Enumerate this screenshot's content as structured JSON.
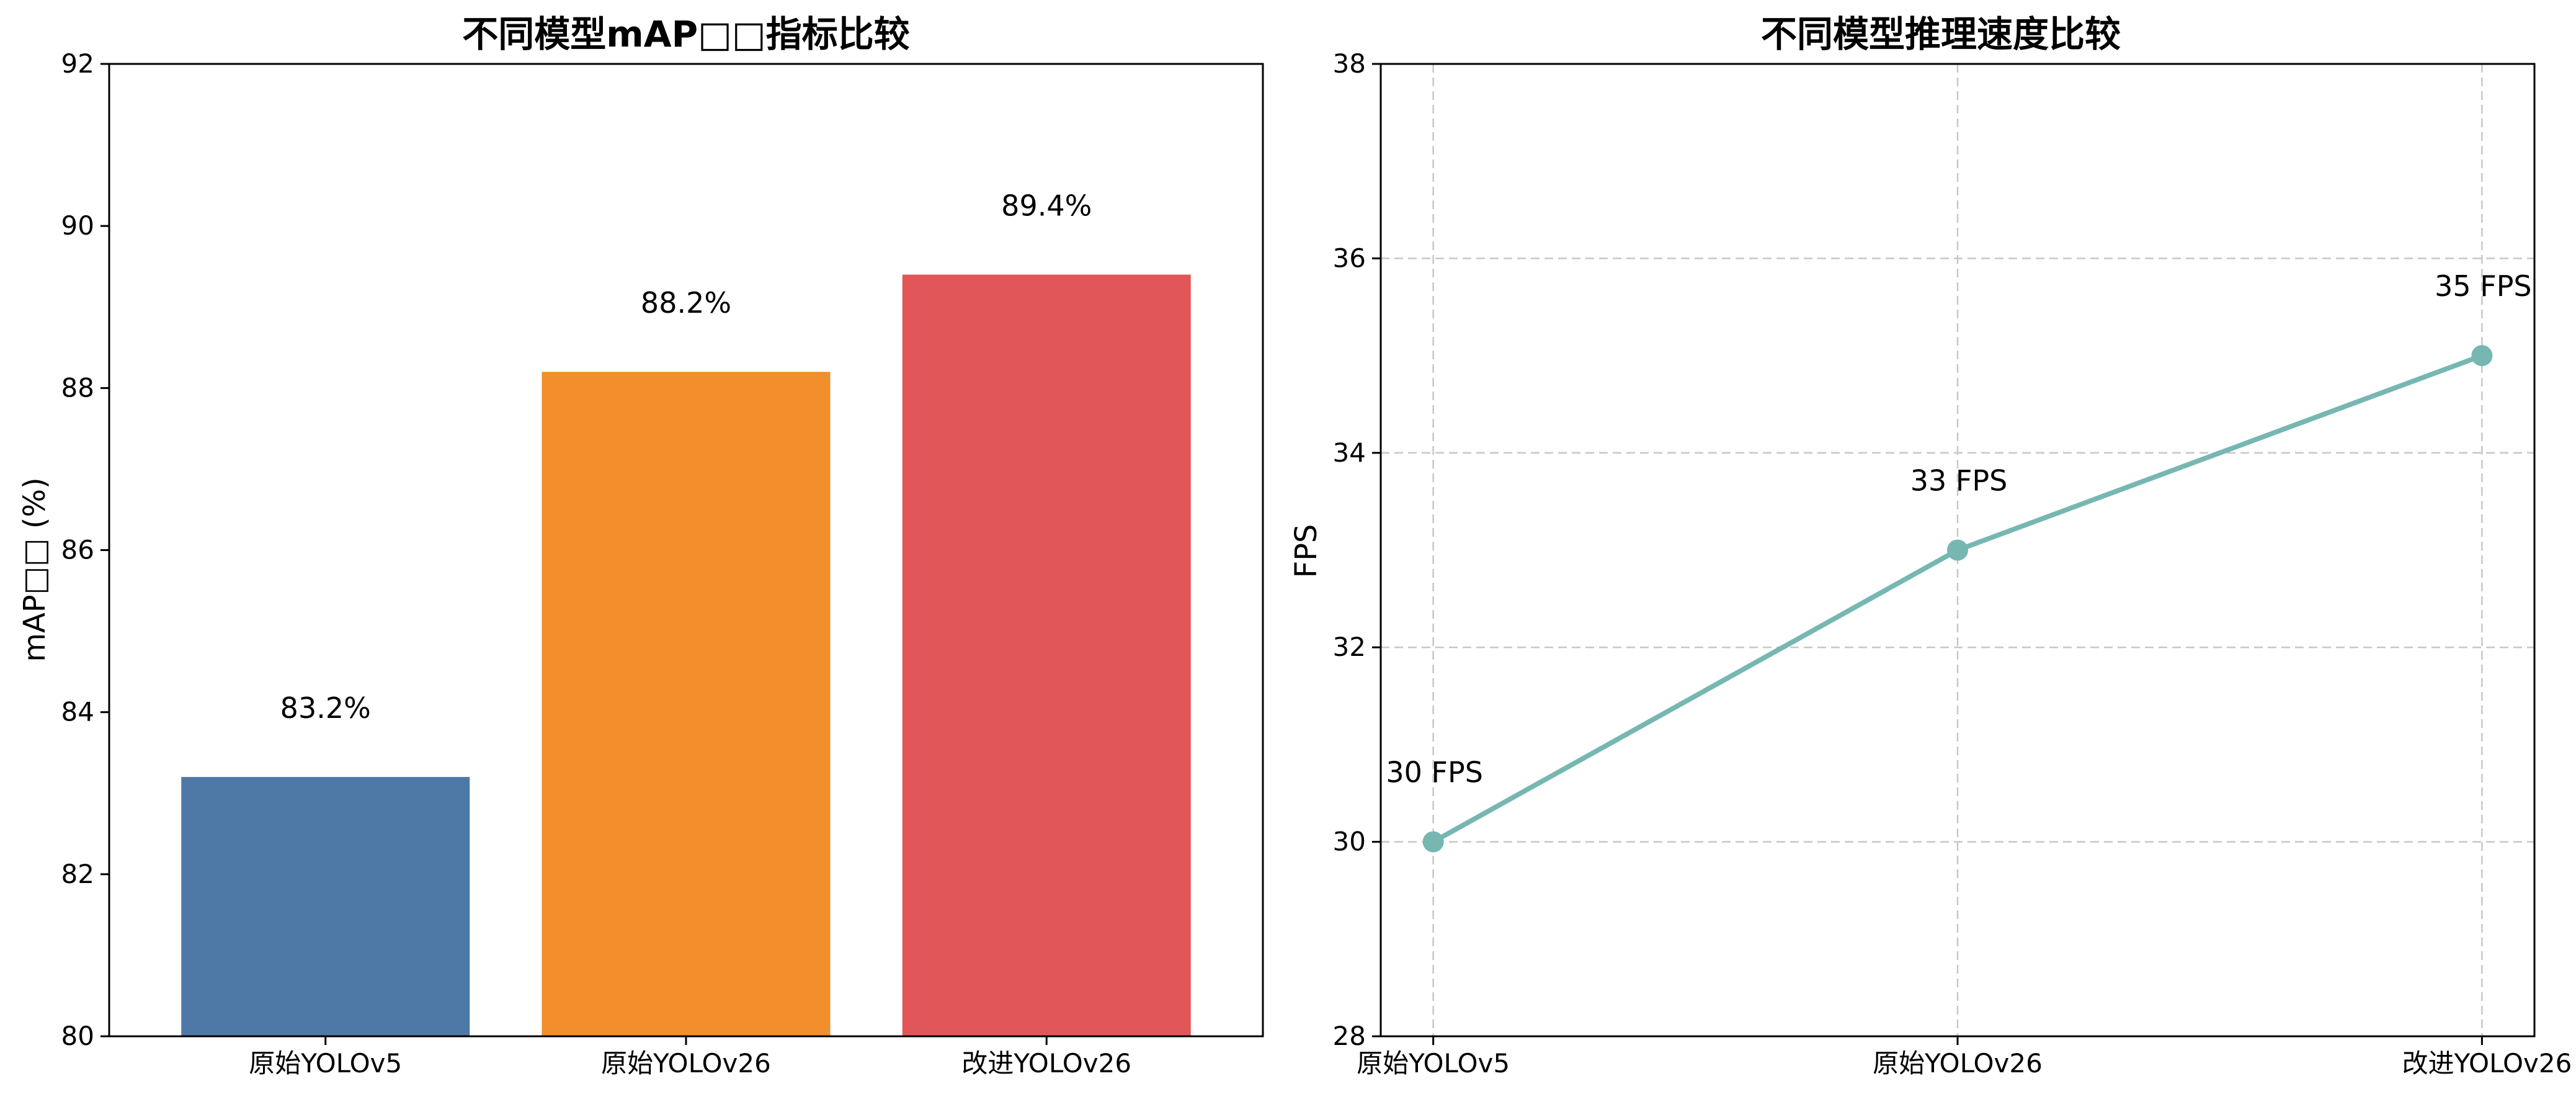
{
  "chart_data": [
    {
      "type": "bar",
      "title": "不同模型mAP□□指标比较",
      "ylabel": "mAP□□ (%)",
      "xlabel": "",
      "categories": [
        "原始YOLOv5",
        "原始YOLOv26",
        "改进YOLOv26"
      ],
      "values": [
        83.2,
        88.2,
        89.4
      ],
      "value_labels": [
        "83.2%",
        "88.2%",
        "89.4%"
      ],
      "colors": [
        "#4e79a7",
        "#f28e2b",
        "#e15759"
      ],
      "ylim": [
        80,
        92
      ],
      "yticks": [
        80,
        82,
        84,
        86,
        88,
        90,
        92
      ],
      "grid": false,
      "legend": "none"
    },
    {
      "type": "line",
      "title": "不同模型推理速度比较",
      "ylabel": "FPS",
      "xlabel": "",
      "categories": [
        "原始YOLOv5",
        "原始YOLOv26",
        "改进YOLOv26"
      ],
      "values": [
        30,
        33,
        35
      ],
      "value_labels": [
        "30 FPS",
        "33 FPS",
        "35 FPS"
      ],
      "color": "#76b7b2",
      "ylim": [
        28,
        38
      ],
      "yticks": [
        28,
        30,
        32,
        34,
        36,
        38
      ],
      "grid": true,
      "legend": "none"
    }
  ]
}
